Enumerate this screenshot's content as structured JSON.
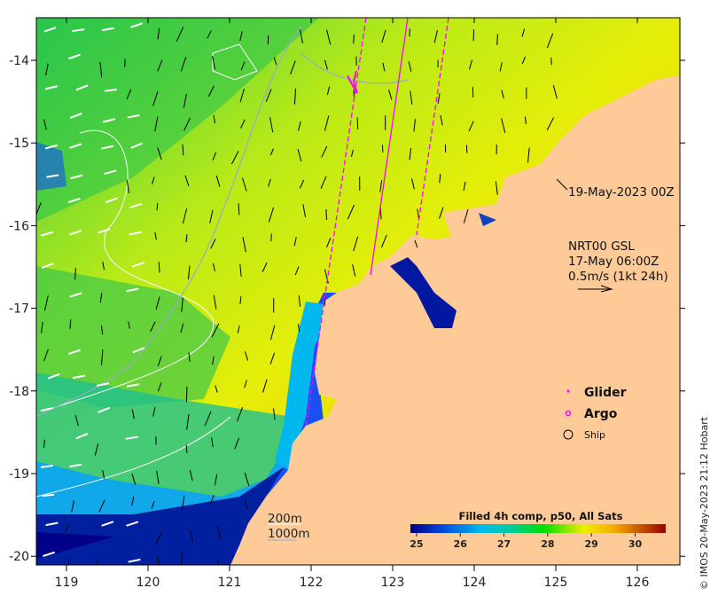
{
  "map": {
    "lon_ticks": [
      "119",
      "120",
      "121",
      "122",
      "123",
      "124",
      "125",
      "126"
    ],
    "lat_ticks": [
      "-14",
      "-15",
      "-16",
      "-17",
      "-18",
      "-19",
      "-20"
    ],
    "lon_values": [
      119,
      120,
      121,
      122,
      123,
      124,
      125,
      126
    ],
    "lat_values": [
      -14,
      -15,
      -16,
      -17,
      -18,
      -19,
      -20
    ],
    "lon_range": [
      118.63,
      126.5
    ],
    "lat_range": [
      -13.52,
      -20.1
    ]
  },
  "annotations": {
    "timestamp": "19-May-2023 00Z",
    "current_source": "NRT00 GSL",
    "current_time": "17-May 06:00Z",
    "current_scale": "0.5m/s (1kt 24h)"
  },
  "legend": {
    "glider": "Glider",
    "argo": "Argo",
    "ship": "Ship",
    "contour_200": "200m",
    "contour_1000": "1000m"
  },
  "colorbar": {
    "title": "Filled 4h comp, p50, All Sats",
    "ticks": [
      "25",
      "26",
      "27",
      "28",
      "29",
      "30"
    ],
    "range": [
      24.86,
      30.7
    ]
  },
  "credit": "© IMOS 20-May-2023 21:12 Hobart",
  "colors": {
    "land": "#fecb98",
    "argo": "#ff00ff",
    "glider": "#ff00ff",
    "contour_200": "#ffffff",
    "contour_1000": "#9aa8c8"
  }
}
